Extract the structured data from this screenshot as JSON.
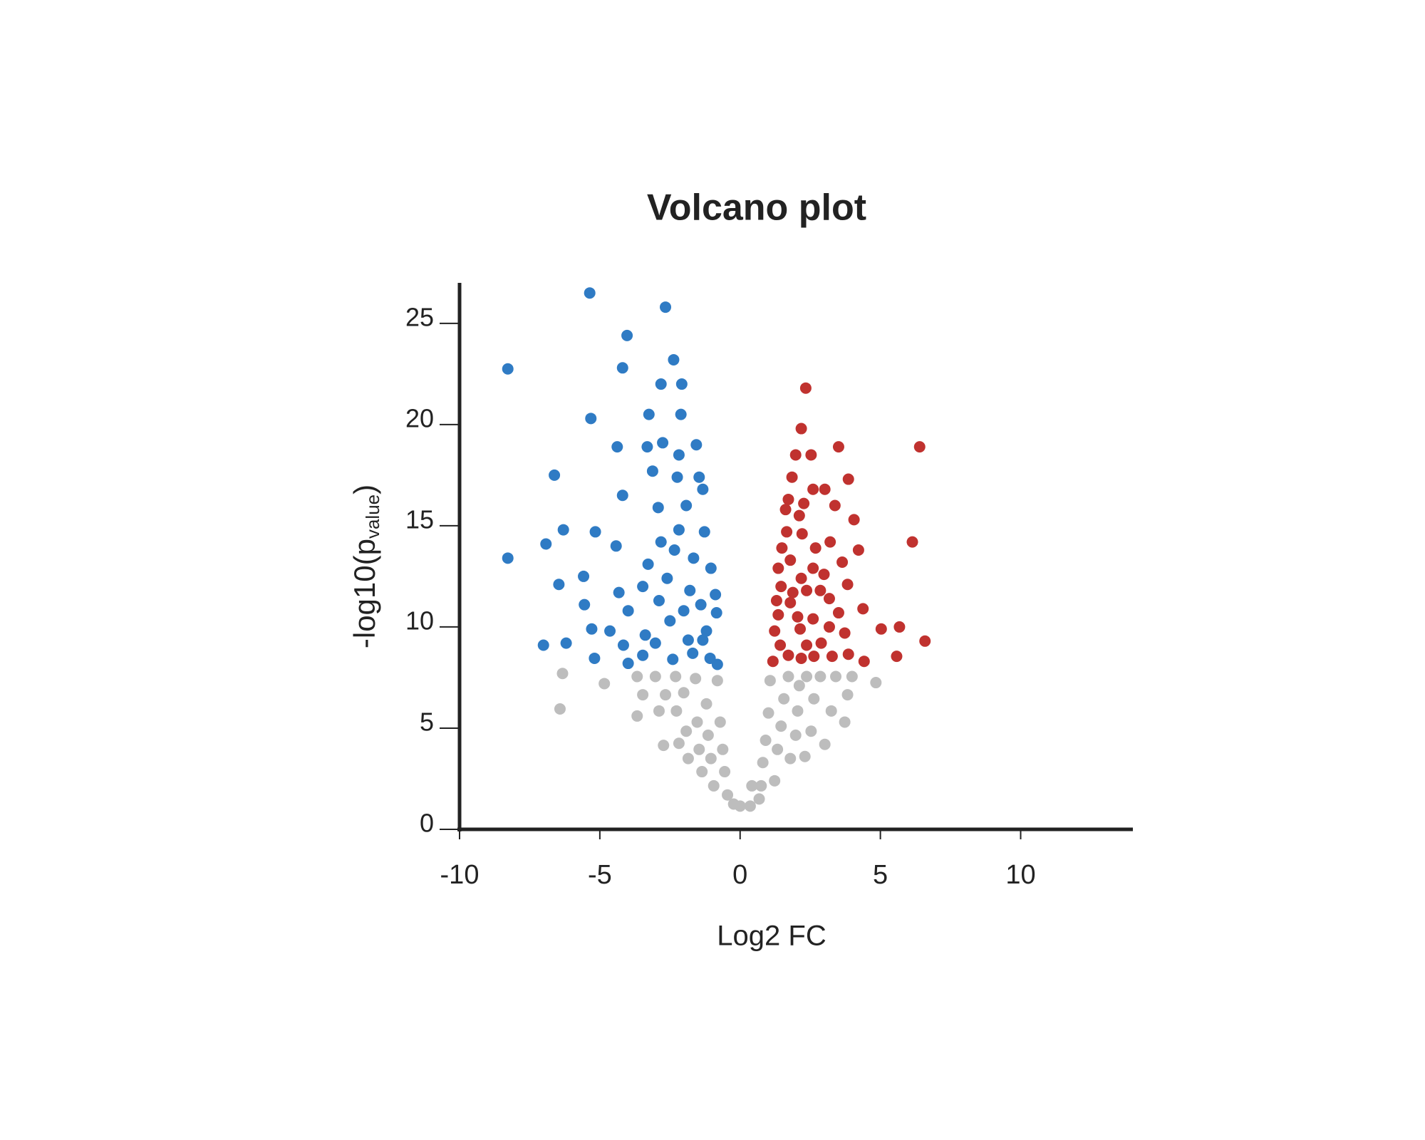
{
  "chart_data": {
    "type": "scatter",
    "title": "Volcano plot",
    "xlabel": "Log2 FC",
    "ylabel": [
      "-log10(p",
      "value",
      ")"
    ],
    "xlim": [
      -10,
      14
    ],
    "xticks": [
      -10,
      -5,
      0,
      5,
      10
    ],
    "ylim": [
      0,
      27
    ],
    "yticks": [
      0,
      5,
      10,
      15,
      20,
      25
    ],
    "grid": false,
    "series": [
      {
        "color": "#2f7bc4",
        "x": [
          -8.28,
          -8.28,
          -5.36,
          -2.66,
          -4.03,
          -4.19,
          -2.37,
          -2.82,
          -2.08,
          -5.32,
          -3.25,
          -2.11,
          -6.62,
          -4.38,
          -3.31,
          -2.76,
          -2.18,
          -1.56,
          -3.12,
          -2.24,
          -1.46,
          -4.19,
          -2.92,
          -1.92,
          -1.33,
          -6.3,
          -6.92,
          -5.16,
          -4.42,
          -2.82,
          -2.18,
          -1.27,
          -3.28,
          -2.34,
          -1.66,
          -1.04,
          -6.46,
          -5.58,
          -4.32,
          -3.47,
          -2.6,
          -1.79,
          -0.88,
          -5.55,
          -3.99,
          -2.89,
          -2.01,
          -1.4,
          -0.84,
          -7.01,
          -6.2,
          -5.29,
          -4.64,
          -3.38,
          -2.5,
          -1.85,
          -1.2,
          -5.19,
          -4.16,
          -3.99,
          -3.47,
          -3.02,
          -2.4,
          -1.69,
          -1.07,
          -0.81,
          -1.33
        ],
        "values": [
          22.75,
          13.4,
          26.5,
          25.8,
          24.4,
          22.8,
          23.2,
          22.0,
          22.0,
          20.3,
          20.5,
          20.5,
          17.5,
          18.9,
          18.9,
          19.1,
          18.5,
          19.0,
          17.7,
          17.4,
          17.4,
          16.5,
          15.9,
          16.0,
          16.8,
          14.8,
          14.1,
          14.7,
          14.0,
          14.2,
          14.8,
          14.7,
          13.1,
          13.8,
          13.4,
          12.9,
          12.1,
          12.5,
          11.7,
          12.0,
          12.4,
          11.8,
          11.6,
          11.1,
          10.8,
          11.3,
          10.8,
          11.1,
          10.7,
          9.1,
          9.2,
          9.9,
          9.8,
          9.6,
          10.3,
          9.35,
          9.8,
          8.45,
          9.1,
          8.2,
          8.6,
          9.2,
          8.4,
          8.7,
          8.45,
          8.15,
          9.35
        ]
      },
      {
        "color": "#c0322f",
        "x": [
          2.34,
          2.18,
          1.98,
          2.53,
          3.51,
          6.4,
          1.85,
          2.6,
          3.02,
          3.86,
          1.72,
          2.27,
          3.38,
          1.62,
          2.11,
          4.06,
          1.66,
          2.21,
          3.21,
          6.14,
          1.49,
          2.69,
          4.22,
          1.79,
          2.6,
          3.64,
          1.36,
          2.18,
          2.99,
          1.46,
          1.88,
          2.37,
          2.86,
          3.83,
          1.3,
          1.79,
          3.18,
          4.38,
          1.36,
          2.05,
          2.6,
          3.51,
          1.23,
          2.14,
          3.18,
          3.73,
          5.03,
          5.68,
          6.59,
          1.43,
          2.37,
          2.89,
          3.28,
          3.86,
          4.42,
          5.58,
          1.17,
          1.72,
          2.18,
          2.63
        ],
        "values": [
          21.8,
          19.8,
          18.5,
          18.5,
          18.9,
          18.9,
          17.4,
          16.8,
          16.8,
          17.3,
          16.3,
          16.1,
          16.0,
          15.8,
          15.5,
          15.3,
          14.7,
          14.6,
          14.2,
          14.2,
          13.9,
          13.9,
          13.8,
          13.3,
          12.9,
          13.2,
          12.9,
          12.4,
          12.6,
          12.0,
          11.7,
          11.8,
          11.8,
          12.1,
          11.3,
          11.2,
          11.4,
          10.9,
          10.6,
          10.5,
          10.4,
          10.7,
          9.8,
          9.9,
          10.0,
          9.7,
          9.9,
          10.0,
          9.3,
          9.1,
          9.1,
          9.2,
          8.55,
          8.65,
          8.3,
          8.55,
          8.3,
          8.6,
          8.45,
          8.55
        ]
      },
      {
        "color": "#bdbdbd",
        "x": [
          -6.33,
          -6.42,
          -4.84,
          -3.67,
          -3.67,
          -3.47,
          -3.02,
          -2.89,
          -2.73,
          -2.66,
          -2.3,
          -2.27,
          -2.18,
          -2.01,
          -1.92,
          -1.85,
          -1.59,
          -1.53,
          -1.46,
          -1.36,
          -1.2,
          -1.14,
          -1.04,
          -0.94,
          -0.81,
          -0.71,
          -0.62,
          -0.55,
          -0.45,
          -0.23,
          0,
          0.36,
          0.68,
          0.75,
          0.81,
          0.91,
          1.01,
          1.07,
          1.23,
          1.33,
          1.46,
          1.56,
          1.72,
          1.79,
          1.98,
          2.05,
          2.11,
          2.37,
          2.31,
          2.53,
          2.63,
          2.86,
          3.02,
          3.25,
          3.41,
          3.73,
          3.83,
          3.99,
          4.84,
          0.42
        ],
        "values": [
          7.7,
          5.95,
          7.2,
          7.55,
          5.6,
          6.65,
          7.55,
          5.85,
          4.15,
          6.65,
          7.55,
          5.85,
          4.25,
          6.75,
          4.85,
          3.5,
          7.45,
          5.3,
          3.95,
          2.85,
          6.2,
          4.65,
          3.5,
          2.15,
          7.35,
          5.3,
          3.95,
          2.85,
          1.7,
          1.25,
          1.15,
          1.15,
          1.5,
          2.15,
          3.3,
          4.4,
          5.75,
          7.35,
          2.4,
          3.95,
          5.1,
          6.45,
          7.55,
          3.5,
          4.65,
          5.85,
          7.1,
          7.55,
          3.6,
          4.85,
          6.45,
          7.55,
          4.2,
          5.85,
          7.55,
          5.3,
          6.65,
          7.55,
          7.25,
          2.15
        ]
      }
    ]
  }
}
